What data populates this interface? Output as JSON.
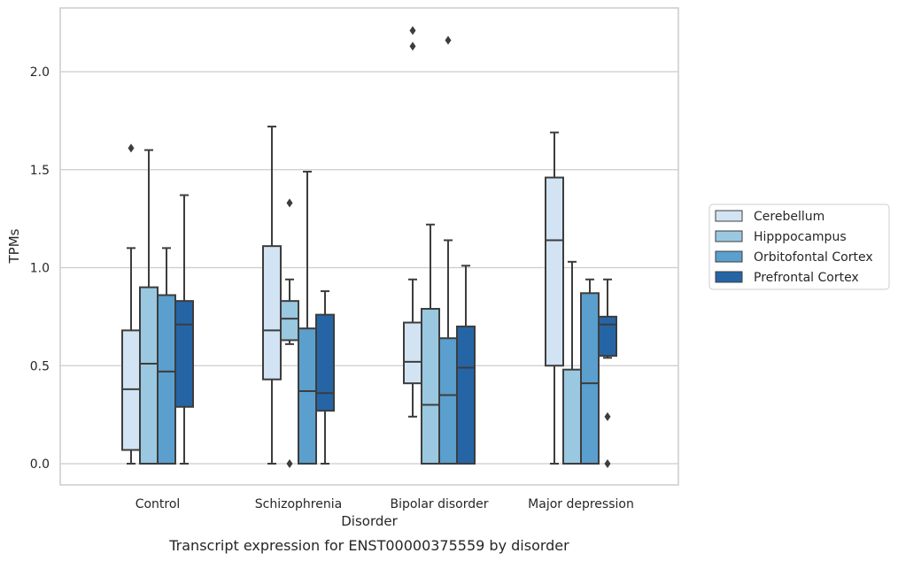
{
  "caption": "Transcript expression for ENST00000375559 by disorder",
  "chart_data": {
    "type": "box",
    "title": "",
    "xlabel": "Disorder",
    "ylabel": "TPMs",
    "ylim": [
      -0.1,
      2.35
    ],
    "yticks": [
      0.0,
      0.5,
      1.0,
      1.5,
      2.0
    ],
    "ytick_labels": [
      "0.0",
      "0.5",
      "1.0",
      "1.5",
      "2.0"
    ],
    "grid": "horizontal",
    "legend_position": "right",
    "categories": [
      "Control",
      "Schizophrenia",
      "Bipolar disorder",
      "Major depression"
    ],
    "series": [
      {
        "name": "Cerebellum",
        "color": "#d2e3f3",
        "boxes": [
          {
            "whislo": 0.0,
            "q1": 0.07,
            "med": 0.38,
            "q3": 0.68,
            "whishi": 1.1,
            "fliers": [
              1.61
            ]
          },
          {
            "whislo": 0.0,
            "q1": 0.43,
            "med": 0.68,
            "q3": 1.11,
            "whishi": 1.72,
            "fliers": []
          },
          {
            "whislo": 0.24,
            "q1": 0.41,
            "med": 0.52,
            "q3": 0.72,
            "whishi": 0.94,
            "fliers": [
              2.13,
              2.21
            ]
          },
          {
            "whislo": 0.0,
            "q1": 0.5,
            "med": 1.14,
            "q3": 1.46,
            "whishi": 1.69,
            "fliers": []
          }
        ]
      },
      {
        "name": "Hipppocampus",
        "color": "#9ac8e0",
        "boxes": [
          {
            "whislo": 0.0,
            "q1": 0.0,
            "med": 0.51,
            "q3": 0.9,
            "whishi": 1.6,
            "fliers": []
          },
          {
            "whislo": 0.61,
            "q1": 0.63,
            "med": 0.74,
            "q3": 0.83,
            "whishi": 0.94,
            "fliers": [
              0.0,
              1.33
            ]
          },
          {
            "whislo": 0.0,
            "q1": 0.0,
            "med": 0.3,
            "q3": 0.79,
            "whishi": 1.22,
            "fliers": []
          },
          {
            "whislo": 0.0,
            "q1": 0.0,
            "med": 0.0,
            "q3": 0.48,
            "whishi": 1.03,
            "fliers": []
          }
        ]
      },
      {
        "name": "Orbitofontal Cortex",
        "color": "#5a9fcd",
        "boxes": [
          {
            "whislo": 0.0,
            "q1": 0.0,
            "med": 0.47,
            "q3": 0.86,
            "whishi": 1.1,
            "fliers": []
          },
          {
            "whislo": 0.0,
            "q1": 0.0,
            "med": 0.37,
            "q3": 0.69,
            "whishi": 1.49,
            "fliers": []
          },
          {
            "whislo": 0.0,
            "q1": 0.0,
            "med": 0.35,
            "q3": 0.64,
            "whishi": 1.14,
            "fliers": [
              2.16
            ]
          },
          {
            "whislo": 0.0,
            "q1": 0.0,
            "med": 0.41,
            "q3": 0.87,
            "whishi": 0.94,
            "fliers": []
          }
        ]
      },
      {
        "name": "Prefrontal Cortex",
        "color": "#2565a6",
        "boxes": [
          {
            "whislo": 0.0,
            "q1": 0.29,
            "med": 0.71,
            "q3": 0.83,
            "whishi": 1.37,
            "fliers": []
          },
          {
            "whislo": 0.0,
            "q1": 0.27,
            "med": 0.36,
            "q3": 0.76,
            "whishi": 0.88,
            "fliers": []
          },
          {
            "whislo": 0.0,
            "q1": 0.0,
            "med": 0.49,
            "q3": 0.7,
            "whishi": 1.01,
            "fliers": []
          },
          {
            "whislo": 0.54,
            "q1": 0.55,
            "med": 0.71,
            "q3": 0.75,
            "whishi": 0.94,
            "fliers": [
              0.0,
              0.24
            ]
          }
        ]
      }
    ]
  }
}
